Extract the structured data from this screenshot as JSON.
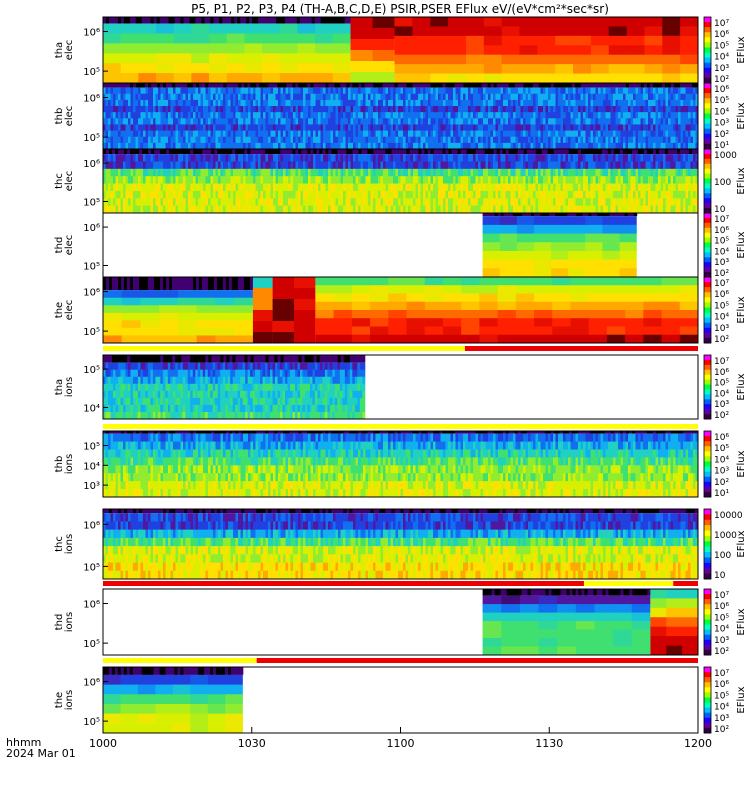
{
  "title": "P5, P1, P2, P3, P4 (TH-A,B,C,D,E) PSIR,PSER EFlux eV/(eV*cm²*sec*sr)",
  "time_label": "hhmm",
  "date_label": "2024 Mar 01",
  "chart_data": {
    "type": "heatmap",
    "x_ticks": [
      "1000",
      "1030",
      "1100",
      "1130",
      "1200"
    ],
    "x_range": [
      "10:00",
      "12:00"
    ],
    "panels": [
      {
        "id": "tha-elec",
        "ylabel": [
          "tha",
          "elec"
        ],
        "yticks": [
          "10⁶",
          "10⁵"
        ],
        "zlabel": "EFlux",
        "zticks": [
          "10⁷",
          "10⁶",
          "10⁵",
          "10⁴",
          "10³",
          "10²"
        ],
        "colormap": "rainbow"
      },
      {
        "id": "thb-elec",
        "ylabel": [
          "thb",
          "elec"
        ],
        "yticks": [
          "10⁶",
          "10⁵"
        ],
        "zlabel": "EFlux",
        "zticks": [
          "10⁶",
          "10⁵",
          "10⁴",
          "10³",
          "10²",
          "10¹"
        ],
        "colormap": "rainbow"
      },
      {
        "id": "thc-elec",
        "ylabel": [
          "thc",
          "elec"
        ],
        "yticks": [
          "10⁶",
          "10⁵"
        ],
        "zlabel": "EFlux",
        "zticks": [
          "1000",
          "100",
          "10"
        ],
        "colormap": "rainbow"
      },
      {
        "id": "thd-elec",
        "ylabel": [
          "thd",
          "elec"
        ],
        "yticks": [
          "10⁶",
          "10⁵"
        ],
        "zlabel": "EFlux",
        "zticks": [
          "10⁷",
          "10⁶",
          "10⁵",
          "10⁴",
          "10³",
          "10²"
        ],
        "colormap": "rainbow"
      },
      {
        "id": "the-elec",
        "ylabel": [
          "the",
          "elec"
        ],
        "yticks": [
          "10⁶",
          "10⁵"
        ],
        "zlabel": "EFlux",
        "zticks": [
          "10⁷",
          "10⁶",
          "10⁵",
          "10⁴",
          "10³",
          "10²"
        ],
        "colormap": "rainbow"
      },
      {
        "id": "tha-ions",
        "ylabel": [
          "tha",
          "ions"
        ],
        "yticks": [
          "10⁵",
          "10⁴"
        ],
        "zlabel": "EFlux",
        "zticks": [
          "10⁷",
          "10⁶",
          "10⁵",
          "10⁴",
          "10³",
          "10²"
        ],
        "colormap": "rainbow"
      },
      {
        "id": "thb-ions",
        "ylabel": [
          "thb",
          "ions"
        ],
        "yticks": [
          "10⁵",
          "10⁴",
          "10³"
        ],
        "zlabel": "EFlux",
        "zticks": [
          "10⁶",
          "10⁵",
          "10⁴",
          "10³",
          "10²",
          "10¹"
        ],
        "colormap": "rainbow"
      },
      {
        "id": "thc-ions",
        "ylabel": [
          "thc",
          "ions"
        ],
        "yticks": [
          "10⁶",
          "10⁵"
        ],
        "zlabel": "EFlux",
        "zticks": [
          "10000",
          "1000",
          "100",
          "10"
        ],
        "colormap": "rainbow"
      },
      {
        "id": "thd-ions",
        "ylabel": [
          "thd",
          "ions"
        ],
        "yticks": [
          "10⁶",
          "10⁵"
        ],
        "zlabel": "EFlux",
        "zticks": [
          "10⁷",
          "10⁶",
          "10⁵",
          "10⁴",
          "10³",
          "10²"
        ],
        "colormap": "rainbow"
      },
      {
        "id": "the-ions",
        "ylabel": [
          "the",
          "ions"
        ],
        "yticks": [
          "10⁶",
          "10⁵"
        ],
        "zlabel": "EFlux",
        "zticks": [
          "10⁷",
          "10⁶",
          "10⁵",
          "10⁴",
          "10³",
          "10²"
        ],
        "colormap": "rainbow"
      }
    ],
    "mode_bars": [
      {
        "after_panel": "the-elec",
        "segments": [
          {
            "start": "10:00",
            "end": "11:13",
            "color": "#ffff00"
          },
          {
            "start": "11:13",
            "end": "12:00",
            "color": "#ee0000"
          }
        ]
      },
      {
        "after_panel": "tha-ions",
        "segments": [
          {
            "start": "10:00",
            "end": "12:00",
            "color": "#ffff00"
          }
        ]
      },
      {
        "after_panel": "thc-ions",
        "segments": [
          {
            "start": "10:00",
            "end": "11:37",
            "color": "#ee0000"
          },
          {
            "start": "11:37",
            "end": "11:55",
            "color": "#ffff00"
          },
          {
            "start": "11:55",
            "end": "12:00",
            "color": "#ee0000"
          }
        ]
      },
      {
        "after_panel": "thd-ions",
        "segments": [
          {
            "start": "10:00",
            "end": "10:31",
            "color": "#ffff00"
          },
          {
            "start": "10:31",
            "end": "12:00",
            "color": "#ee0000"
          }
        ]
      }
    ],
    "colors": {
      "background": "#ffffff",
      "frame": "#000000"
    }
  }
}
